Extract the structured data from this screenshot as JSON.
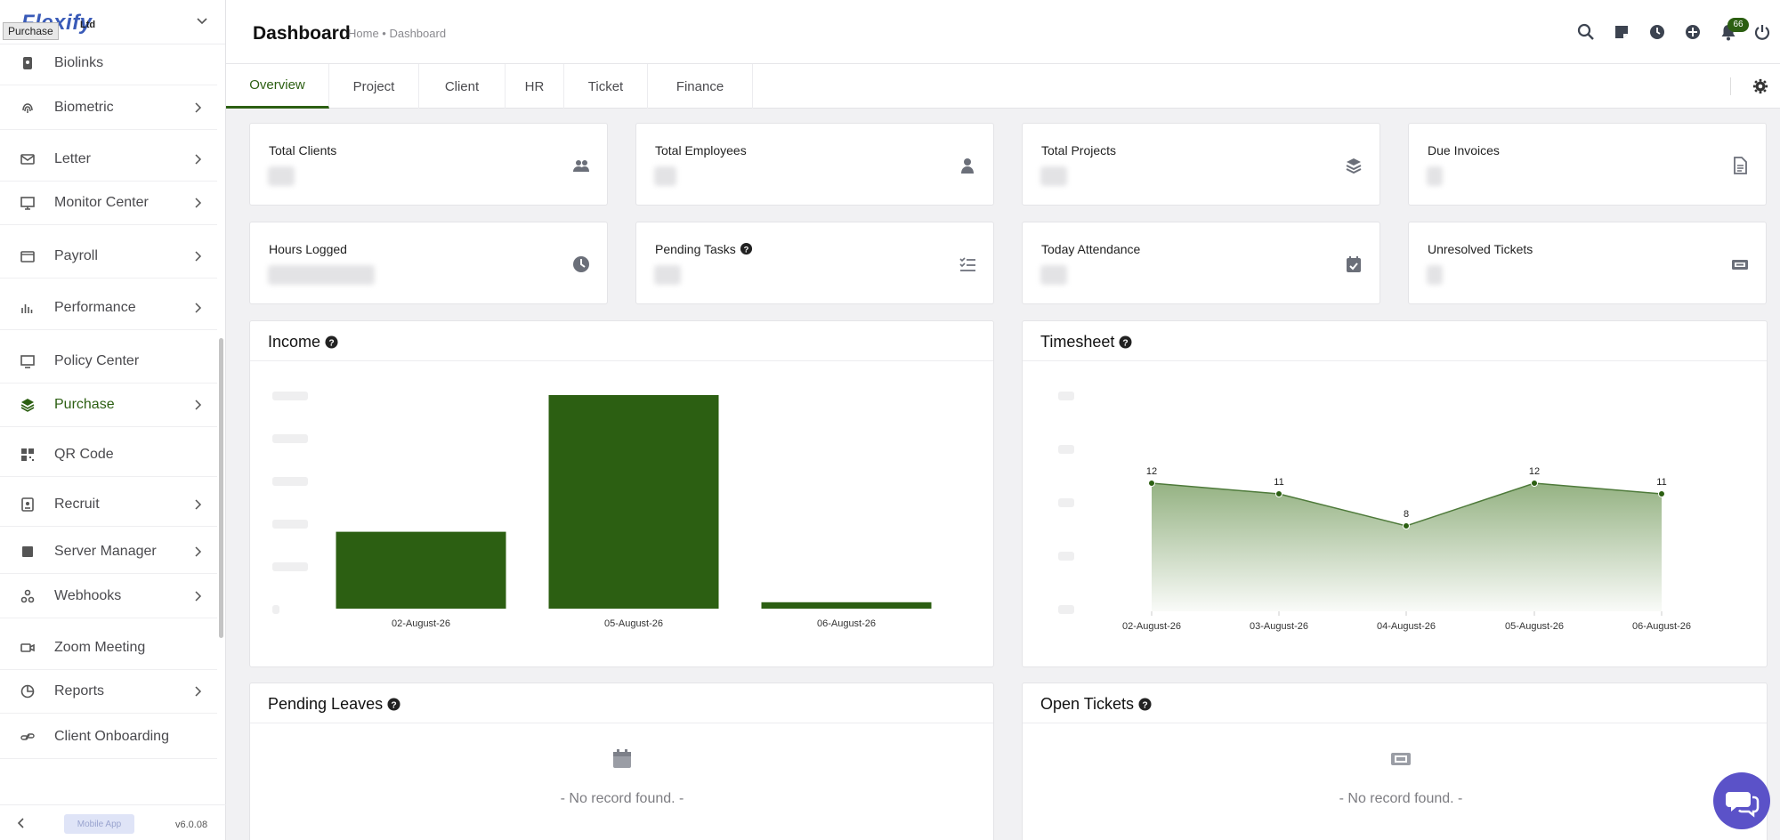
{
  "sidebar": {
    "logo_text": "Flexify",
    "logo_suffix": "Ltd",
    "tooltip": "Purchase",
    "items": [
      {
        "label": "Biolinks",
        "icon": "biolink-icon",
        "arrow": false
      },
      {
        "label": "Biometric",
        "icon": "fingerprint-icon",
        "arrow": true
      },
      {
        "label": "Letter",
        "icon": "envelope-icon",
        "arrow": true
      },
      {
        "label": "Monitor Center",
        "icon": "monitor-icon",
        "arrow": true
      },
      {
        "label": "Payroll",
        "icon": "wallet-icon",
        "arrow": true
      },
      {
        "label": "Performance",
        "icon": "bar-chart-icon",
        "arrow": true
      },
      {
        "label": "Policy Center",
        "icon": "desktop-icon",
        "arrow": false
      },
      {
        "label": "Purchase",
        "icon": "layers-icon",
        "arrow": true,
        "active": true
      },
      {
        "label": "QR Code",
        "icon": "qr-code-icon",
        "arrow": false
      },
      {
        "label": "Recruit",
        "icon": "badge-icon",
        "arrow": true
      },
      {
        "label": "Server Manager",
        "icon": "server-icon",
        "arrow": true
      },
      {
        "label": "Webhooks",
        "icon": "webhook-icon",
        "arrow": true
      },
      {
        "label": "Zoom Meeting",
        "icon": "video-icon",
        "arrow": false
      },
      {
        "label": "Reports",
        "icon": "pie-chart-icon",
        "arrow": true
      },
      {
        "label": "Client Onboarding",
        "icon": "link-icon",
        "arrow": false
      }
    ],
    "mobile_app": "Mobile App",
    "version": "v6.0.08"
  },
  "header": {
    "title": "Dashboard",
    "breadcrumb": "Home • Dashboard",
    "notification_count": "66"
  },
  "tabs": [
    "Overview",
    "Project",
    "Client",
    "HR",
    "Ticket",
    "Finance"
  ],
  "active_tab": "Overview",
  "cards": [
    {
      "title": "Total Clients",
      "icon": "users-icon"
    },
    {
      "title": "Total Employees",
      "icon": "user-icon"
    },
    {
      "title": "Total Projects",
      "icon": "layers-icon"
    },
    {
      "title": "Due Invoices",
      "icon": "file-invoice-icon"
    },
    {
      "title": "Hours Logged",
      "icon": "clock-icon"
    },
    {
      "title": "Pending Tasks",
      "icon": "task-list-icon",
      "help": true
    },
    {
      "title": "Today Attendance",
      "icon": "calendar-check-icon"
    },
    {
      "title": "Unresolved Tickets",
      "icon": "ticket-icon"
    }
  ],
  "panels": {
    "income": "Income",
    "timesheet": "Timesheet",
    "pending_leaves": "Pending Leaves",
    "open_tickets": "Open Tickets",
    "empty_text": "- No record found. -"
  },
  "colors": {
    "accent": "#2c5f12",
    "chat": "#5b52c8",
    "area_fill": "#8fae7c"
  },
  "chart_data": [
    {
      "type": "bar",
      "title": "Income",
      "categories": [
        "02-August-26",
        "05-August-26",
        "06-August-26"
      ],
      "values": [
        0.36,
        1.0,
        0.03
      ],
      "grid": false
    },
    {
      "type": "area",
      "title": "Timesheet",
      "categories": [
        "02-August-26",
        "03-August-26",
        "04-August-26",
        "05-August-26",
        "06-August-26"
      ],
      "values": [
        12,
        11,
        8,
        12,
        11
      ],
      "ylim": [
        0,
        20
      ],
      "grid": false
    }
  ]
}
